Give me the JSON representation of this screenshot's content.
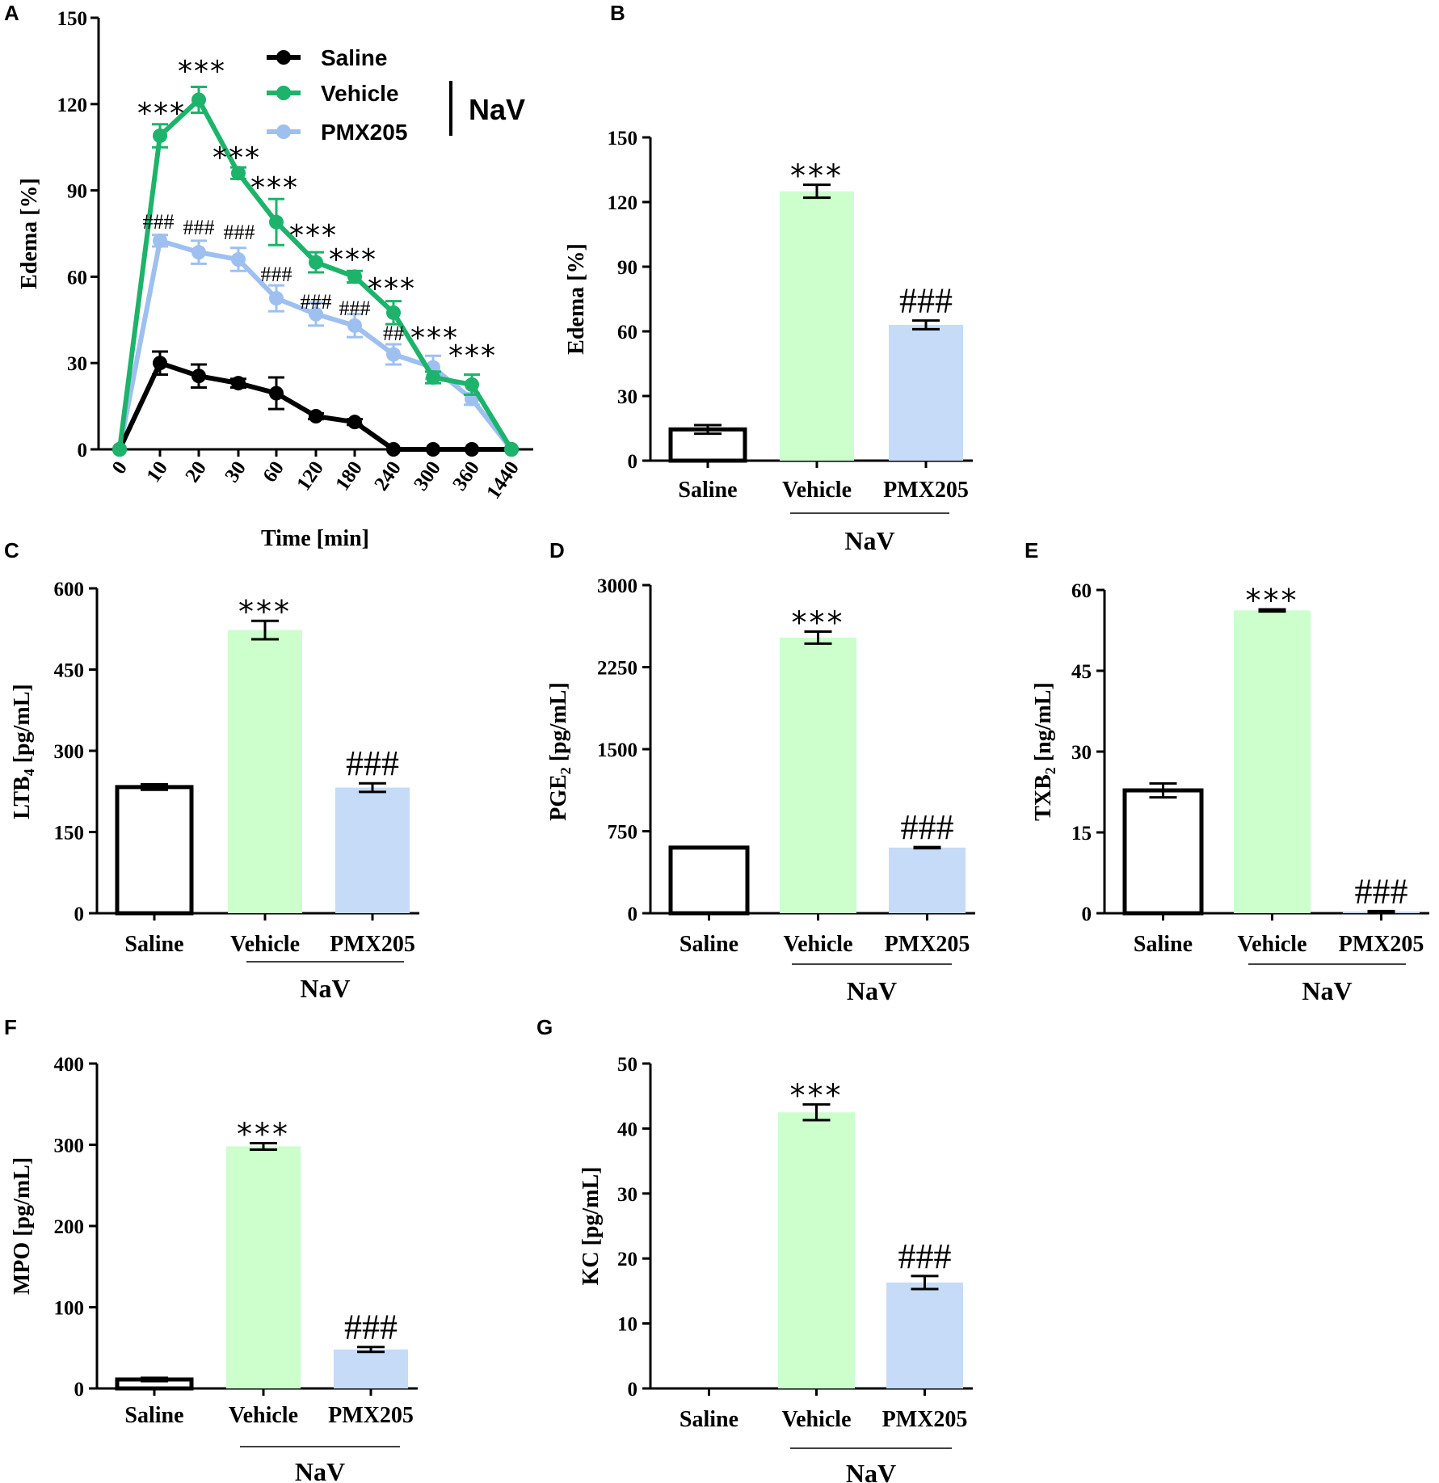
{
  "colors": {
    "saline": "#000000",
    "vehicle_line": "#1db36b",
    "pmx_line": "#9ec0f0",
    "vehicle_bar": "#ccffcc",
    "pmx_bar": "#c5dbf7",
    "saline_bar": "#ffffff"
  },
  "chart_data": [
    {
      "panel": "A",
      "type": "line",
      "xlabel": "Time [min]",
      "ylabel": "Edema [%]",
      "ylim": [
        0,
        150
      ],
      "yticks": [
        "0",
        "30",
        "60",
        "90",
        "120",
        "150"
      ],
      "categories": [
        "0",
        "10",
        "20",
        "30",
        "60",
        "120",
        "180",
        "240",
        "300",
        "360",
        "1440"
      ],
      "legend": [
        "Saline",
        "Vehicle",
        "PMX205"
      ],
      "legend_group": "NaV",
      "series": [
        {
          "name": "Saline",
          "values": [
            0,
            30,
            25.5,
            23,
            19.5,
            11.5,
            9.5,
            0,
            0,
            0,
            0
          ],
          "errors": [
            0,
            4,
            4,
            1.5,
            5.5,
            1,
            1,
            0,
            0,
            0,
            0
          ]
        },
        {
          "name": "Vehicle",
          "values": [
            0,
            109,
            121.5,
            96,
            79,
            65,
            60,
            47.5,
            25,
            22.5,
            0
          ],
          "errors": [
            0,
            4,
            4.5,
            2,
            8,
            3.5,
            2,
            4,
            2,
            3.5,
            0
          ]
        },
        {
          "name": "PMX205",
          "values": [
            0,
            72.5,
            68.5,
            66,
            52.5,
            47,
            43,
            33,
            28.5,
            17.5,
            0
          ],
          "errors": [
            0,
            2,
            4,
            4,
            4.5,
            4,
            4,
            3.5,
            4,
            2,
            0
          ]
        }
      ],
      "annotations_vehicle": [
        "***",
        "***",
        "***",
        "***",
        "***",
        "***",
        "***",
        "***",
        "***"
      ],
      "annotations_pmx": [
        "###",
        "###",
        "###",
        "###",
        "###",
        "###",
        "##",
        "",
        ""
      ]
    },
    {
      "panel": "B",
      "type": "bar",
      "ylabel": "Edema [%]",
      "ylim": [
        0,
        150
      ],
      "yticks": [
        "0",
        "30",
        "60",
        "90",
        "120",
        "150"
      ],
      "categories": [
        "Saline",
        "Vehicle",
        "PMX205"
      ],
      "group_label": "NaV",
      "values": [
        14.5,
        125,
        63
      ],
      "errors": [
        2,
        3,
        2
      ],
      "annotations": [
        "",
        "***",
        "###"
      ]
    },
    {
      "panel": "C",
      "type": "bar",
      "ylabel": "LTB",
      "ylabel_sub": "4",
      "ylabel_unit": " [pg/mL]",
      "ylim": [
        0,
        600
      ],
      "yticks": [
        "0",
        "150",
        "300",
        "450",
        "600"
      ],
      "categories": [
        "Saline",
        "Vehicle",
        "PMX205"
      ],
      "group_label": "NaV",
      "values": [
        233,
        523,
        232
      ],
      "errors": [
        5,
        17,
        8
      ],
      "annotations": [
        "",
        "***",
        "###"
      ]
    },
    {
      "panel": "D",
      "type": "bar",
      "ylabel": "PGE",
      "ylabel_sub": "2",
      "ylabel_unit": " [pg/mL]",
      "ylim": [
        0,
        3000
      ],
      "yticks": [
        "0",
        "750",
        "1500",
        "2250",
        "3000"
      ],
      "categories": [
        "Saline",
        "Vehicle",
        "PMX205"
      ],
      "group_label": "NaV",
      "values": [
        600,
        2520,
        600
      ],
      "errors": [
        5,
        55,
        5
      ],
      "annotations": [
        "",
        "***",
        "###"
      ]
    },
    {
      "panel": "E",
      "type": "bar",
      "ylabel": "TXB",
      "ylabel_sub": "2",
      "ylabel_unit": " [ng/mL]",
      "ylim": [
        0,
        60
      ],
      "yticks": [
        "0",
        "15",
        "30",
        "45",
        "60"
      ],
      "categories": [
        "Saline",
        "Vehicle",
        "PMX205"
      ],
      "group_label": "NaV",
      "values": [
        22.8,
        56.2,
        0.2
      ],
      "errors": [
        1.3,
        0.2,
        0.2
      ],
      "annotations": [
        "",
        "***",
        "###"
      ]
    },
    {
      "panel": "F",
      "type": "bar",
      "ylabel": "MPO [pg/mL]",
      "ylim": [
        0,
        400
      ],
      "yticks": [
        "0",
        "100",
        "200",
        "300",
        "400"
      ],
      "categories": [
        "Saline",
        "Vehicle",
        "PMX205"
      ],
      "group_label": "NaV",
      "values": [
        11,
        298,
        48
      ],
      "errors": [
        2,
        4,
        3
      ],
      "annotations": [
        "",
        "***",
        "###"
      ]
    },
    {
      "panel": "G",
      "type": "bar",
      "ylabel": "KC [pg/mL]",
      "ylim": [
        0,
        50
      ],
      "yticks": [
        "0",
        "10",
        "20",
        "30",
        "40",
        "50"
      ],
      "categories": [
        "Saline",
        "Vehicle",
        "PMX205"
      ],
      "group_label": "NaV",
      "values": [
        0,
        42.5,
        16.3
      ],
      "errors": [
        0,
        1.2,
        1
      ],
      "annotations": [
        "",
        "***",
        "###"
      ]
    }
  ]
}
